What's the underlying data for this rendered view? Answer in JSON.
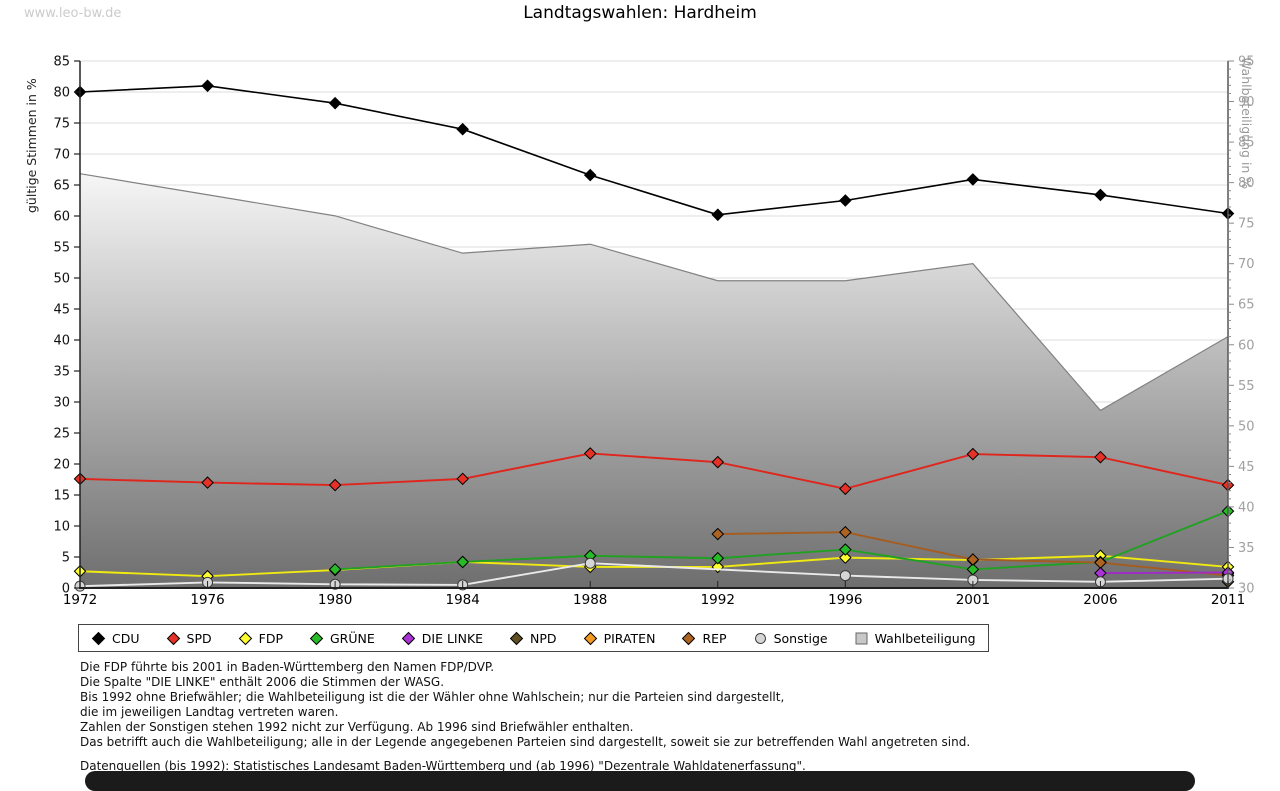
{
  "site": {
    "watermark": "www.leo-bw.de"
  },
  "chart_data": {
    "type": "line",
    "title": "Landtagswahlen: Hardheim",
    "categories": [
      "1972",
      "1976",
      "1980",
      "1984",
      "1988",
      "1992",
      "1996",
      "2001",
      "2006",
      "2011"
    ],
    "ylabel_left": "gültige Stimmen in %",
    "ylabel_right": "Wahlbeteiligung in %",
    "ylim_left": [
      0,
      85
    ],
    "ylim_right": [
      30,
      95
    ],
    "ytick_step": 5,
    "grid": true,
    "legend_position": "bottom",
    "series": [
      {
        "name": "CDU",
        "axis": "left",
        "marker": "diamond",
        "color": "#000000",
        "marker_fill": "#000000",
        "values": [
          80.0,
          81.0,
          78.2,
          74.0,
          66.6,
          60.2,
          62.5,
          65.9,
          63.4,
          60.4
        ]
      },
      {
        "name": "SPD",
        "axis": "left",
        "marker": "diamond",
        "color": "#e0251c",
        "marker_fill": "#e63226",
        "values": [
          17.6,
          17.0,
          16.6,
          17.6,
          21.7,
          20.3,
          16.0,
          21.6,
          21.1,
          16.6
        ]
      },
      {
        "name": "FDP",
        "axis": "left",
        "marker": "diamond",
        "color": "#f0ea10",
        "marker_fill": "#ffff2e",
        "values": [
          2.7,
          1.9,
          2.9,
          4.2,
          3.4,
          3.4,
          4.9,
          4.5,
          5.2,
          3.4
        ]
      },
      {
        "name": "GRÜNE",
        "axis": "left",
        "marker": "diamond",
        "color": "#21a121",
        "marker_fill": "#27bb27",
        "values": [
          null,
          null,
          3.0,
          4.2,
          5.2,
          4.8,
          6.2,
          3.0,
          4.2,
          12.4
        ]
      },
      {
        "name": "DIE LINKE",
        "axis": "left",
        "marker": "diamond",
        "color": "#a02cc8",
        "marker_fill": "#aa33d6",
        "values": [
          null,
          null,
          null,
          null,
          null,
          null,
          null,
          null,
          2.4,
          2.5
        ]
      },
      {
        "name": "NPD",
        "axis": "left",
        "marker": "diamond",
        "color": "#5a4a1e",
        "marker_fill": "#5f4e22",
        "values": [
          null,
          null,
          null,
          null,
          null,
          null,
          null,
          null,
          null,
          1.0
        ]
      },
      {
        "name": "PIRATEN",
        "axis": "left",
        "marker": "diamond",
        "color": "#ef8e17",
        "marker_fill": "#f49a22",
        "values": [
          null,
          null,
          null,
          null,
          null,
          null,
          null,
          null,
          null,
          2.3
        ]
      },
      {
        "name": "REP",
        "axis": "left",
        "marker": "diamond",
        "color": "#a65c1e",
        "marker_fill": "#ad6322",
        "values": [
          null,
          null,
          null,
          null,
          null,
          8.7,
          9.0,
          4.6,
          4.1,
          2.0
        ]
      },
      {
        "name": "Sonstige",
        "axis": "left",
        "marker": "circle",
        "color": "#e9e9e9",
        "marker_fill": "#d6d6d6",
        "values": [
          0.3,
          0.9,
          0.6,
          0.5,
          4.0,
          null,
          2.0,
          1.3,
          1.0,
          1.5
        ]
      },
      {
        "name": "Wahlbeteiligung",
        "axis": "right",
        "type": "area",
        "marker": "square",
        "color": "#828282",
        "marker_fill": "#c8c8c8",
        "values": [
          81.1,
          78.5,
          75.9,
          71.3,
          72.4,
          67.9,
          67.9,
          70.0,
          51.9,
          61.0
        ]
      }
    ]
  },
  "footnotes": [
    "Die FDP führte bis 2001 in Baden-Württemberg den Namen FDP/DVP.",
    "Die Spalte \"DIE LINKE\" enthält 2006 die Stimmen der WASG.",
    "Bis 1992 ohne Briefwähler; die Wahlbeteiligung ist die der Wähler ohne Wahlschein; nur die Parteien sind dargestellt,",
    "die im jeweiligen Landtag vertreten waren.",
    "Zahlen der Sonstigen stehen 1992 nicht zur Verfügung. Ab 1996 sind Briefwähler enthalten.",
    "Das betrifft auch die Wahlbeteiligung; alle in der Legende angegebenen Parteien sind dargestellt, soweit sie zur betreffenden Wahl angetreten sind.",
    "",
    "Datenquellen (bis 1992): Statistisches Landesamt Baden-Württemberg und (ab 1996) \"Dezentrale Wahldatenerfassung\"."
  ]
}
